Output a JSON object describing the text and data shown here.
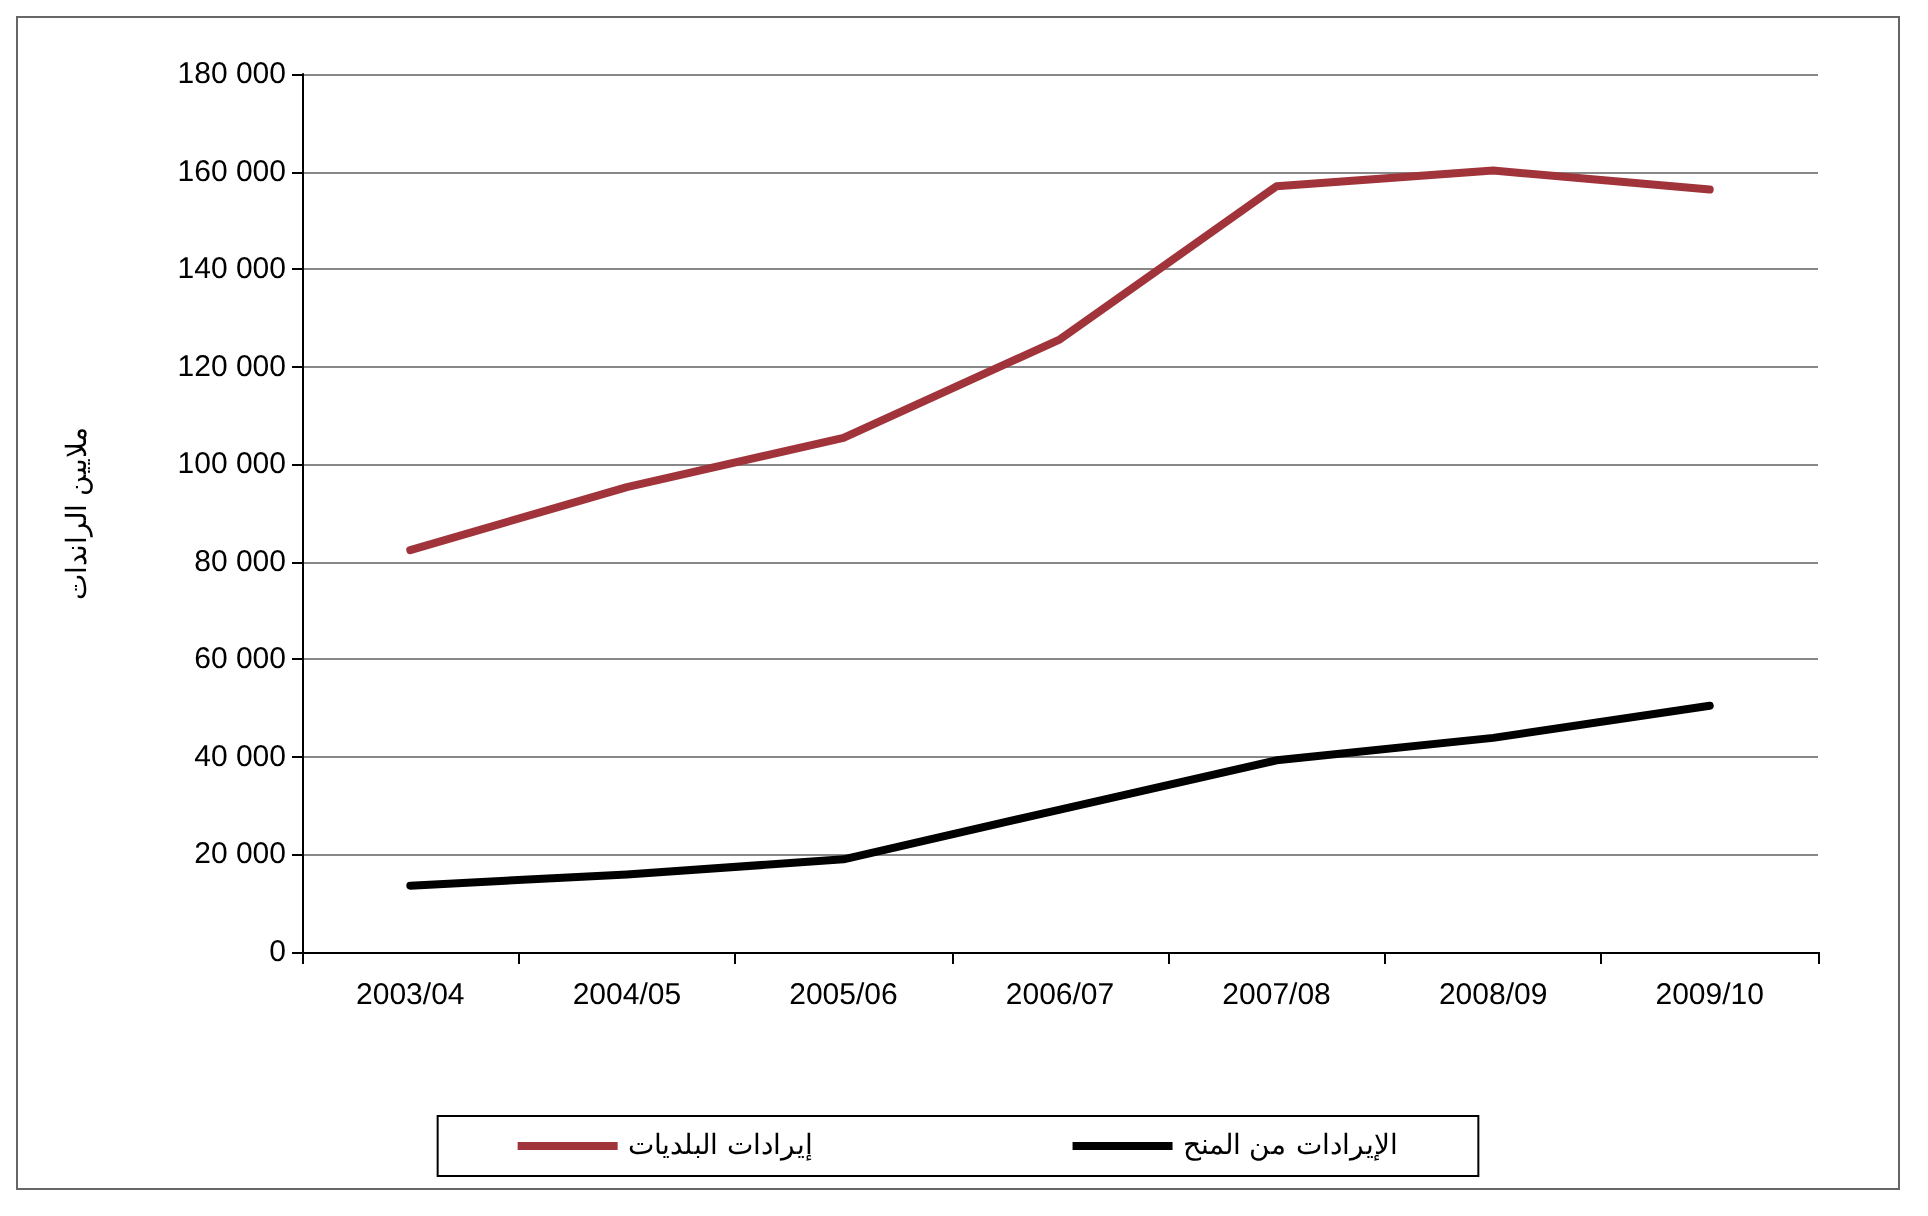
{
  "chart_data": {
    "type": "line",
    "ylabel": "ملايين الراندات",
    "categories": [
      "2003/04",
      "2004/05",
      "2005/06",
      "2006/07",
      "2007/08",
      "2008/09",
      "2009/10"
    ],
    "series": [
      {
        "name": "إيرادات البلديات",
        "color": "#a0343a",
        "values": [
          82400,
          95300,
          105400,
          125600,
          157000,
          160200,
          156300
        ]
      },
      {
        "name": "الإيرادات من المنح",
        "color": "#000000",
        "values": [
          13600,
          15900,
          19000,
          29200,
          39300,
          43900,
          50500
        ]
      }
    ],
    "ylim": [
      0,
      180000
    ],
    "yticks": [
      {
        "value": 0,
        "label": "0"
      },
      {
        "value": 20000,
        "label": "20 000"
      },
      {
        "value": 40000,
        "label": "40 000"
      },
      {
        "value": 60000,
        "label": "60 000"
      },
      {
        "value": 80000,
        "label": "80 000"
      },
      {
        "value": 100000,
        "label": "100 000"
      },
      {
        "value": 120000,
        "label": "120 000"
      },
      {
        "value": 140000,
        "label": "140 000"
      },
      {
        "value": 160000,
        "label": "160 000"
      },
      {
        "value": 180000,
        "label": "180 000"
      }
    ],
    "grid": "y",
    "legend": "bottom",
    "marker": "none",
    "line_style": "solid"
  }
}
